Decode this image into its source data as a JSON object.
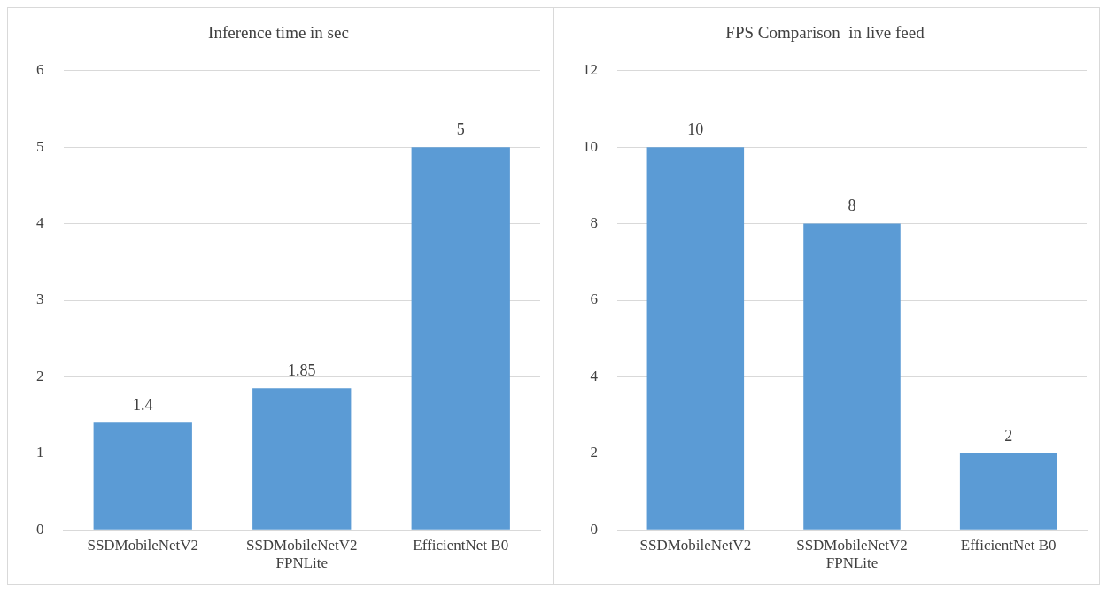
{
  "chart_data": [
    {
      "type": "bar",
      "title": "Inference time in sec",
      "categories": [
        "SSDMobileNetV2",
        "SSDMobileNetV2 FPNLite",
        "EfficientNet B0"
      ],
      "values": [
        1.4,
        1.85,
        5
      ],
      "color": "#5b9bd5",
      "ylim": [
        0,
        6
      ],
      "yticks": [
        0,
        1,
        2,
        3,
        4,
        5,
        6
      ],
      "grid": "y",
      "data_labels": true,
      "legend": false
    },
    {
      "type": "bar",
      "title": "FPS Comparison  in live feed",
      "categories": [
        "SSDMobileNetV2",
        "SSDMobileNetV2 FPNLite",
        "EfficientNet B0"
      ],
      "values": [
        10,
        8,
        2
      ],
      "color": "#5b9bd5",
      "ylim": [
        0,
        12
      ],
      "yticks": [
        0,
        2,
        4,
        6,
        8,
        10,
        12
      ],
      "grid": "y",
      "data_labels": true,
      "legend": false
    }
  ]
}
